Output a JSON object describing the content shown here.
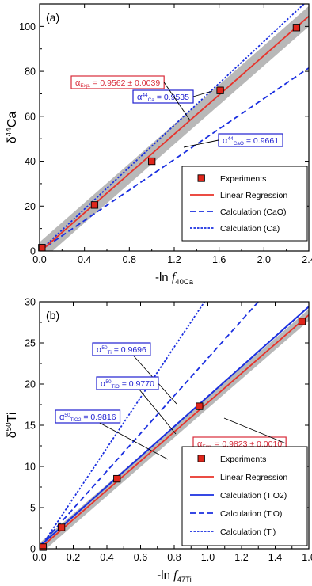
{
  "chart_data": [
    {
      "panel": "(a)",
      "type": "scatter",
      "xlabel_prefix": "-ln ",
      "xlabel_f": "f",
      "xlabel_sub": "40Ca",
      "ylabel_delta": "δ",
      "ylabel_sup": "44",
      "ylabel_el": "Ca",
      "xlim": [
        0.0,
        2.4
      ],
      "ylim": [
        0,
        110
      ],
      "xticks": [
        "0.0",
        "0.4",
        "0.8",
        "1.2",
        "1.6",
        "2.0",
        "2.4"
      ],
      "yticks": [
        "0",
        "20",
        "40",
        "60",
        "80",
        "100"
      ],
      "experiments": [
        {
          "x": 0.02,
          "y": 1.5
        },
        {
          "x": 0.49,
          "y": 20.5
        },
        {
          "x": 1.0,
          "y": 40.0
        },
        {
          "x": 1.61,
          "y": 71.5
        },
        {
          "x": 2.29,
          "y": 99.5
        }
      ],
      "regression": {
        "x": [
          0.0,
          2.4
        ],
        "y": [
          -0.5,
          104.5
        ],
        "band": 4.5
      },
      "calculation_lines": [
        {
          "label": "Calculation (CaO)",
          "x": [
            0.0,
            2.4
          ],
          "y": [
            0,
            81.5
          ],
          "style": "dashed"
        },
        {
          "label": "Calculation (Ca)",
          "x": [
            0.0,
            2.4
          ],
          "y": [
            0,
            112
          ],
          "style": "dotted"
        }
      ],
      "annotations": [
        {
          "text_pre": "α",
          "text_sup": "44",
          "text_sub": "Ca",
          "text_val": " = 0.9535",
          "color": "#1f1fd0"
        },
        {
          "text_pre": "α",
          "text_sup": "",
          "text_sub": "Exp.",
          "text_val": " = 0.9562 ± 0.0039",
          "color": "#d82b3a"
        },
        {
          "text_pre": "α",
          "text_sup": "44",
          "text_sub": "CaO",
          "text_val": " = 0.9661",
          "color": "#1f1fd0"
        }
      ],
      "legend": [
        {
          "label": "Experiments",
          "kind": "marker"
        },
        {
          "label": "Linear Regression",
          "kind": "solid-red"
        },
        {
          "label": "Calculation (CaO)",
          "kind": "dashed-blue"
        },
        {
          "label": "Calculation (Ca)",
          "kind": "dotted-blue"
        }
      ],
      "legend_placement": "bottom-right",
      "grid": false
    },
    {
      "panel": "(b)",
      "type": "scatter",
      "xlabel_prefix": "-ln ",
      "xlabel_f": "f",
      "xlabel_sub": "47Ti",
      "ylabel_delta": "δ",
      "ylabel_sup": "50",
      "ylabel_el": "Ti",
      "xlim": [
        0.0,
        1.6
      ],
      "ylim": [
        0,
        30
      ],
      "xticks": [
        "0.0",
        "0.2",
        "0.4",
        "0.6",
        "0.8",
        "1.0",
        "1.2",
        "1.4",
        "1.6"
      ],
      "yticks": [
        "0",
        "5",
        "10",
        "15",
        "20",
        "25",
        "30"
      ],
      "experiments": [
        {
          "x": 0.02,
          "y": 0.2
        },
        {
          "x": 0.13,
          "y": 2.6
        },
        {
          "x": 0.46,
          "y": 8.5
        },
        {
          "x": 0.95,
          "y": 17.3
        },
        {
          "x": 1.56,
          "y": 27.6
        }
      ],
      "regression": {
        "x": [
          0.0,
          1.6
        ],
        "y": [
          0.0,
          28.4
        ],
        "band": 0.7
      },
      "calculation_lines": [
        {
          "label": "Calculation (TiO2)",
          "x": [
            0.0,
            1.6
          ],
          "y": [
            0.3,
            29.4
          ],
          "style": "solid"
        },
        {
          "label": "Calculation (TiO)",
          "x": [
            0.0,
            1.3
          ],
          "y": [
            0.3,
            30
          ],
          "style": "dashed"
        },
        {
          "label": "Calculation (Ti)",
          "x": [
            0.0,
            0.98
          ],
          "y": [
            0,
            30
          ],
          "style": "dotted"
        }
      ],
      "annotations": [
        {
          "text_pre": "α",
          "text_sup": "50",
          "text_sub": "Ti",
          "text_val": " = 0.9696",
          "color": "#1f1fd0"
        },
        {
          "text_pre": "α",
          "text_sup": "50",
          "text_sub": "TiO",
          "text_val": " = 0.9770",
          "color": "#1f1fd0"
        },
        {
          "text_pre": "α",
          "text_sup": "50",
          "text_sub": "TiO2",
          "text_val": " = 0.9816",
          "color": "#1f1fd0"
        },
        {
          "text_pre": "α",
          "text_sup": "",
          "text_sub": "Exp.",
          "text_val": " = 0.9823 ± 0.0010",
          "color": "#d82b3a"
        }
      ],
      "legend": [
        {
          "label": "Experiments",
          "kind": "marker"
        },
        {
          "label": "Linear Regression",
          "kind": "solid-red"
        },
        {
          "label": "Calculation (TiO2)",
          "kind": "solid-blue"
        },
        {
          "label": "Calculation (TiO)",
          "kind": "dashed-blue"
        },
        {
          "label": "Calculation (Ti)",
          "kind": "dotted-blue"
        }
      ],
      "legend_placement": "bottom-right",
      "grid": false
    }
  ],
  "colors": {
    "marker_fill": "#e0261b",
    "regression": "#e8322a",
    "calculation": "#1a2fe0",
    "band": "#a6a6a6",
    "exp_label": "#d82b3a",
    "calc_label": "#1f1fd0"
  }
}
